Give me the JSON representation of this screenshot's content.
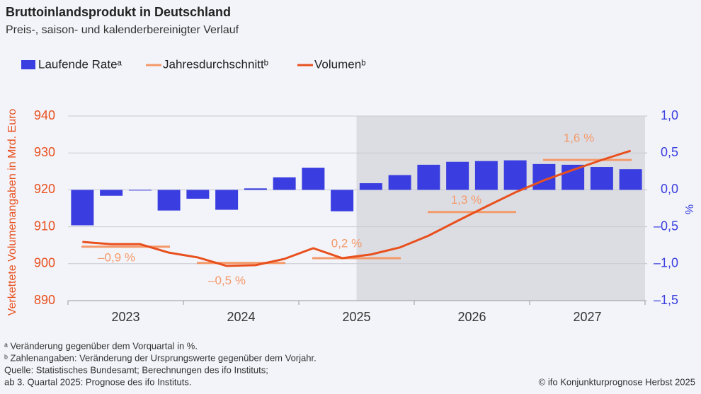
{
  "chart_data": {
    "type": "bar-line",
    "title": "Bruttoinlandsprodukt in Deutschland",
    "subtitle": "Preis-, saison- und kalenderbereinigter Verlauf",
    "y_label": "Verkettete Volumenangaben in Mrd. Euro",
    "y2_label": "%",
    "years": [
      "2023",
      "2024",
      "2025",
      "2026",
      "2027"
    ],
    "series": [
      {
        "name": "Laufende Rateᵃ",
        "color": "#3a3ee0",
        "axis": "y2",
        "values": [
          -0.48,
          -0.08,
          0.0,
          -0.28,
          -0.12,
          -0.27,
          0.02,
          0.17,
          0.3,
          -0.29,
          0.09,
          0.2,
          0.34,
          0.38,
          0.39,
          0.4,
          0.35,
          0.34,
          0.31,
          0.28
        ]
      },
      {
        "name": "Jahresdurchschnittᵇ",
        "color": "#f4996a",
        "values": [
          904.6,
          900.2,
          901.5,
          914.0,
          928.1
        ]
      },
      {
        "name": "Volumenᵇ",
        "color": "#e8501e",
        "values": [
          905.9,
          905.3,
          905.3,
          903.0,
          901.7,
          899.4,
          899.6,
          901.3,
          904.2,
          901.5,
          902.5,
          904.4,
          907.6,
          911.6,
          915.5,
          919.3,
          922.6,
          925.4,
          928.1,
          930.6
        ]
      }
    ],
    "annotations": [
      "–0,9 %",
      "–0,5 %",
      "0,2 %",
      "1,3 %",
      "1,6 %"
    ],
    "ylim": [
      890,
      940
    ],
    "yticks": [
      890,
      900,
      910,
      920,
      930,
      940
    ],
    "y2lim": [
      -1.5,
      1.0
    ],
    "y2ticks": [
      {
        "value": -1.5,
        "label": "–1,5"
      },
      {
        "value": -1.0,
        "label": "–1,0"
      },
      {
        "value": -0.5,
        "label": "–0,5"
      },
      {
        "value": 0,
        "label": "0,0"
      },
      {
        "value": 0.5,
        "label": "0,5"
      },
      {
        "value": 1.0,
        "label": "1,0"
      }
    ],
    "grid": true,
    "footnotes": [
      "ᵃ Veränderung gegenüber dem Vorquartal in %.",
      "ᵇ Zahlenangaben: Veränderung der Ursprungswerte gegenüber dem Vorjahr.",
      "Quelle: Statistisches Bundesamt; Berechnungen des ifo Instituts;",
      "ab 3. Quartal 2025: Prognose des ifo Instituts."
    ],
    "source": "© ifo Konjunkturprognose Herbst 2025"
  }
}
